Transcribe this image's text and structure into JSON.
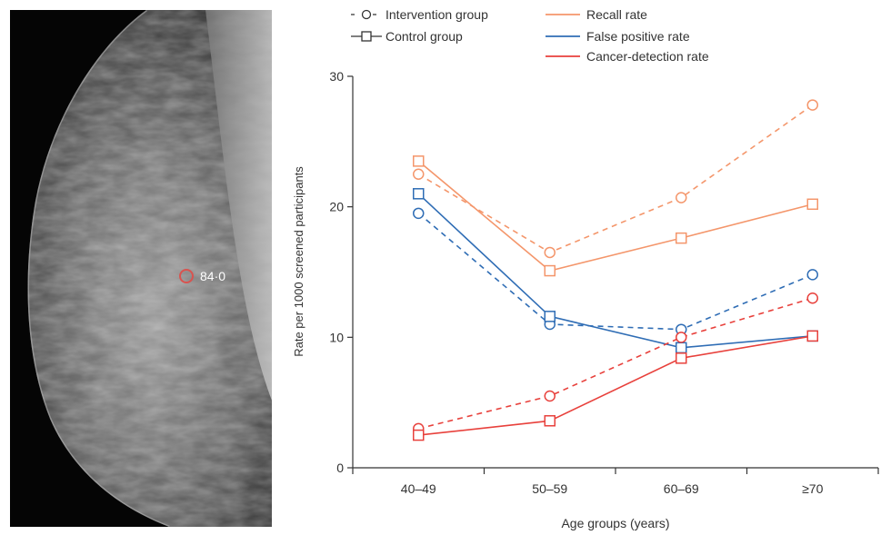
{
  "image_panel": {
    "annotation_label": "84·0",
    "marker_color": "#d9534f"
  },
  "colors": {
    "recall": "#f4966b",
    "false_positive": "#2f6db5",
    "cancer_detection": "#e8413c",
    "axis": "#333333"
  },
  "legend": {
    "groups": [
      {
        "label": "Intervention group",
        "line": "dashed",
        "marker": "circle"
      },
      {
        "label": "Control group",
        "line": "solid",
        "marker": "square"
      }
    ],
    "metrics": [
      {
        "label": "Recall rate",
        "color": "#f4966b"
      },
      {
        "label": "False positive rate",
        "color": "#2f6db5"
      },
      {
        "label": "Cancer-detection rate",
        "color": "#e8413c"
      }
    ]
  },
  "chart_data": {
    "type": "line",
    "categories": [
      "40–49",
      "50–59",
      "60–69",
      "≥70"
    ],
    "xlabel": "Age groups (years)",
    "ylabel": "Rate per 1000 screened participants",
    "ylim": [
      0,
      30
    ],
    "yticks": [
      0,
      10,
      20,
      30
    ],
    "grid": false,
    "legend_position": "top",
    "series": [
      {
        "metric": "Recall rate",
        "group": "Intervention group",
        "color": "#f4966b",
        "dashed": true,
        "marker": "circle",
        "values": [
          22.5,
          16.5,
          20.7,
          27.8
        ]
      },
      {
        "metric": "Recall rate",
        "group": "Control group",
        "color": "#f4966b",
        "dashed": false,
        "marker": "square",
        "values": [
          23.5,
          15.1,
          17.6,
          20.2
        ]
      },
      {
        "metric": "False positive rate",
        "group": "Intervention group",
        "color": "#2f6db5",
        "dashed": true,
        "marker": "circle",
        "values": [
          19.5,
          11.0,
          10.6,
          14.8
        ]
      },
      {
        "metric": "False positive rate",
        "group": "Control group",
        "color": "#2f6db5",
        "dashed": false,
        "marker": "square",
        "values": [
          21.0,
          11.6,
          9.2,
          10.1
        ]
      },
      {
        "metric": "Cancer-detection rate",
        "group": "Intervention group",
        "color": "#e8413c",
        "dashed": true,
        "marker": "circle",
        "values": [
          3.0,
          5.5,
          10.0,
          13.0
        ]
      },
      {
        "metric": "Cancer-detection rate",
        "group": "Control group",
        "color": "#e8413c",
        "dashed": false,
        "marker": "square",
        "values": [
          2.5,
          3.6,
          8.4,
          10.1
        ]
      }
    ]
  }
}
